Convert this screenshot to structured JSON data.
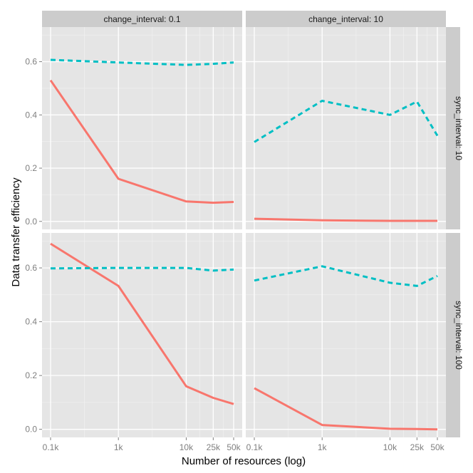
{
  "chart_data": {
    "type": "line",
    "xlabel": "Number of resources (log)",
    "ylabel": "Data transfer efficiency",
    "x_scale": "log",
    "x_ticks": [
      {
        "value": 100,
        "label": "0.1k"
      },
      {
        "value": 1000,
        "label": "1k"
      },
      {
        "value": 10000,
        "label": "10k"
      },
      {
        "value": 25000,
        "label": "25k"
      },
      {
        "value": 50000,
        "label": "50k"
      }
    ],
    "y_ticks": [
      {
        "value": 0,
        "label": "0.0"
      },
      {
        "value": 0.2,
        "label": "0.2"
      },
      {
        "value": 0.4,
        "label": "0.4"
      },
      {
        "value": 0.6,
        "label": "0.6"
      }
    ],
    "ylim": [
      -0.03,
      0.73
    ],
    "x": [
      100,
      1000,
      10000,
      25000,
      50000
    ],
    "series_styles": [
      {
        "id": "a",
        "color": "#F8766D",
        "dash": "solid"
      },
      {
        "id": "b",
        "color": "#00BFC4",
        "dash": "dashed"
      }
    ],
    "col_strips": [
      "change_interval: 0.1",
      "change_interval: 10"
    ],
    "row_strips": [
      "sync_interval: 10",
      "sync_interval: 100"
    ],
    "panels": [
      {
        "row": 0,
        "col": 0,
        "series": [
          {
            "id": "a",
            "values": [
              0.53,
              0.16,
              0.075,
              0.07,
              0.073
            ]
          },
          {
            "id": "b",
            "values": [
              0.607,
              0.597,
              0.588,
              0.592,
              0.597
            ]
          }
        ]
      },
      {
        "row": 0,
        "col": 1,
        "series": [
          {
            "id": "a",
            "values": [
              0.01,
              0.004,
              0.002,
              0.002,
              0.002
            ]
          },
          {
            "id": "b",
            "values": [
              0.298,
              0.453,
              0.4,
              0.45,
              0.322
            ]
          }
        ]
      },
      {
        "row": 1,
        "col": 0,
        "series": [
          {
            "id": "a",
            "values": [
              0.69,
              0.533,
              0.16,
              0.117,
              0.094
            ]
          },
          {
            "id": "b",
            "values": [
              0.598,
              0.6,
              0.6,
              0.59,
              0.594
            ]
          }
        ]
      },
      {
        "row": 1,
        "col": 1,
        "series": [
          {
            "id": "a",
            "values": [
              0.153,
              0.016,
              0.002,
              0.001,
              0.0
            ]
          },
          {
            "id": "b",
            "values": [
              0.553,
              0.606,
              0.545,
              0.533,
              0.57
            ]
          }
        ]
      }
    ]
  }
}
